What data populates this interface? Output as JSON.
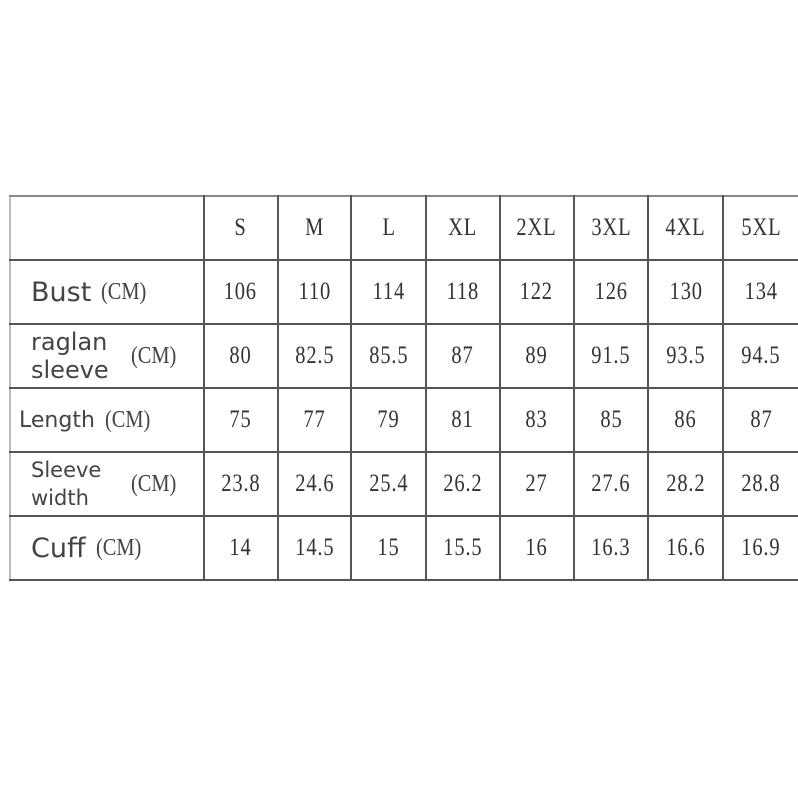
{
  "sizes": [
    "S",
    "M",
    "L",
    "XL",
    "2XL",
    "3XL",
    "4XL",
    "5XL"
  ],
  "rows": [
    {
      "label": "Bust",
      "unit": "(CM)",
      "values": [
        "106",
        "110",
        "114",
        "118",
        "122",
        "126",
        "130",
        "134"
      ]
    },
    {
      "label": "raglan sleeve",
      "unit": "(CM)",
      "values": [
        "80",
        "82.5",
        "85.5",
        "87",
        "89",
        "91.5",
        "93.5",
        "94.5"
      ]
    },
    {
      "label": "Length",
      "unit": "(CM)",
      "values": [
        "75",
        "77",
        "79",
        "81",
        "83",
        "85",
        "86",
        "87"
      ]
    },
    {
      "label": "Sleeve width",
      "unit": "(CM)",
      "values": [
        "23.8",
        "24.6",
        "25.4",
        "26.2",
        "27",
        "27.6",
        "28.2",
        "28.8"
      ]
    },
    {
      "label": "Cuff",
      "unit": "(CM)",
      "values": [
        "14",
        "14.5",
        "15",
        "15.5",
        "16",
        "16.3",
        "16.6",
        "16.9"
      ]
    }
  ]
}
